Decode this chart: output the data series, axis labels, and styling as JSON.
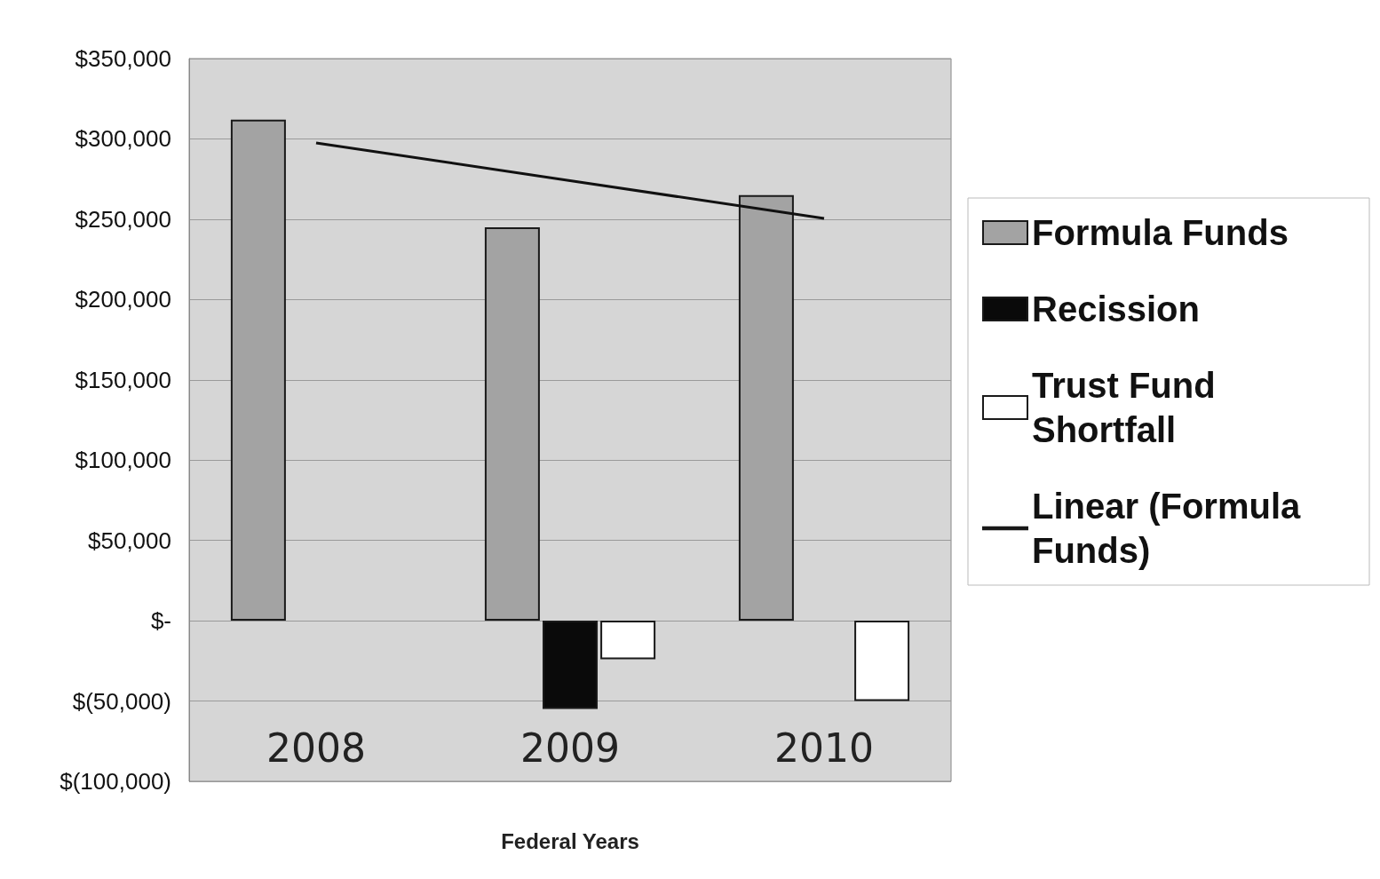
{
  "chart_data": {
    "type": "bar",
    "xlabel": "Federal Years",
    "categories": [
      "2008",
      "2009",
      "2010"
    ],
    "series": [
      {
        "name": "Formula Funds",
        "color": "#a3a3a3",
        "values": [
          312000,
          245000,
          265000
        ]
      },
      {
        "name": "Recission",
        "color": "#0a0a0a",
        "values": [
          null,
          -55000,
          null
        ]
      },
      {
        "name": "Trust Fund Shortfall",
        "color": "#ffffff",
        "values": [
          null,
          -24000,
          -50000
        ]
      },
      {
        "name": "Linear (Formula Funds)",
        "type": "line",
        "color": "#111111",
        "values": [
          297500,
          274000,
          250500
        ]
      }
    ],
    "ylim": [
      -100000,
      350000
    ],
    "yticks": [
      {
        "value": -100000,
        "label": "$(100,000)"
      },
      {
        "value": -50000,
        "label": "$(50,000)"
      },
      {
        "value": 0,
        "label": "$-"
      },
      {
        "value": 50000,
        "label": "$50,000"
      },
      {
        "value": 100000,
        "label": "$100,000"
      },
      {
        "value": 150000,
        "label": "$150,000"
      },
      {
        "value": 200000,
        "label": "$200,000"
      },
      {
        "value": 250000,
        "label": "$250,000"
      },
      {
        "value": 300000,
        "label": "$300,000"
      },
      {
        "value": 350000,
        "label": "$350,000"
      }
    ],
    "grid": "y",
    "legend": "right",
    "marker": "none",
    "line_style": "solid"
  }
}
